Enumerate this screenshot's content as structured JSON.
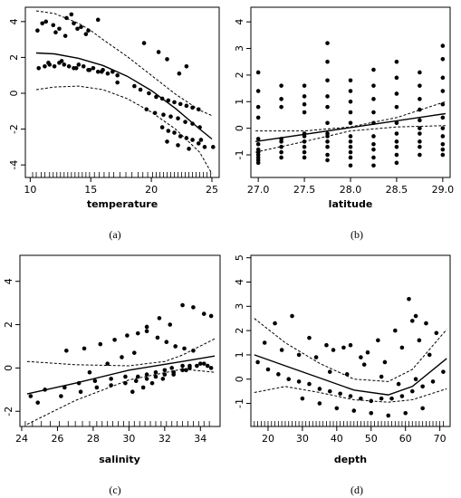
{
  "chart_data": [
    {
      "type": "scatter",
      "panel_label": "(a)",
      "xlabel": "temperature",
      "ylabel": "",
      "xlim": [
        9.6,
        25.6
      ],
      "ylim": [
        -4.7,
        4.8
      ],
      "xticks": [
        "10",
        "15",
        "20",
        "25"
      ],
      "yticks": [
        "-4",
        "-2",
        "0",
        "2",
        "4"
      ],
      "grid": false,
      "series": [
        {
          "role": "points",
          "x": [
            10.6,
            11.3,
            11.9,
            12.4,
            13.0,
            13.6,
            14.2,
            14.8,
            12.9,
            13.4,
            11.0,
            12.1,
            13.9,
            14.6,
            15.6,
            10.7,
            11.2,
            11.6,
            12.0,
            12.4,
            12.8,
            13.2,
            13.6,
            14.0,
            14.4,
            14.8,
            15.2,
            15.6,
            16.0,
            16.4,
            16.8,
            17.2,
            11.5,
            12.6,
            13.8,
            14.9,
            15.9,
            19.4,
            20.6,
            21.3,
            22.3,
            22.9,
            17.2,
            18.6,
            19.1,
            19.8,
            20.4,
            20.9,
            21.4,
            21.9,
            22.4,
            22.9,
            23.4,
            23.9,
            19.6,
            20.3,
            21.0,
            21.6,
            22.2,
            22.8,
            23.4,
            24.0,
            20.9,
            21.4,
            21.9,
            22.4,
            22.9,
            23.4,
            23.9,
            24.4,
            21.3,
            22.2,
            23.1,
            24.1,
            25.1
          ],
          "y": [
            3.5,
            4.0,
            3.8,
            3.6,
            4.2,
            3.9,
            3.7,
            3.5,
            3.2,
            4.4,
            3.9,
            3.4,
            3.6,
            3.3,
            4.1,
            1.4,
            1.5,
            1.6,
            1.5,
            1.7,
            1.6,
            1.5,
            1.4,
            1.6,
            1.5,
            1.3,
            1.4,
            1.2,
            1.3,
            1.1,
            1.2,
            1.0,
            1.7,
            1.8,
            1.4,
            1.3,
            1.2,
            2.8,
            2.3,
            1.9,
            1.1,
            1.5,
            0.6,
            0.4,
            0.2,
            0.0,
            -0.2,
            -0.3,
            -0.4,
            -0.5,
            -0.6,
            -0.7,
            -0.8,
            -0.9,
            -0.9,
            -1.1,
            -1.2,
            -1.3,
            -1.4,
            -1.6,
            -1.7,
            -1.9,
            -1.9,
            -2.1,
            -2.2,
            -2.4,
            -2.5,
            -2.6,
            -2.8,
            -3.0,
            -2.7,
            -2.9,
            -3.1,
            -2.6,
            -3.0
          ]
        },
        {
          "role": "fit",
          "x": [
            10.5,
            12,
            14,
            16,
            18,
            20,
            22,
            24,
            25
          ],
          "y": [
            2.25,
            2.2,
            1.95,
            1.55,
            0.95,
            0.15,
            -0.85,
            -2.0,
            -2.55
          ]
        },
        {
          "role": "upper-ci",
          "x": [
            10.5,
            12,
            14,
            15,
            16,
            18,
            20,
            22,
            24,
            25
          ],
          "y": [
            4.6,
            4.45,
            3.9,
            3.5,
            3.0,
            2.05,
            1.0,
            -0.05,
            -0.95,
            -1.25
          ]
        },
        {
          "role": "lower-ci",
          "x": [
            10.5,
            12,
            14,
            16,
            18,
            20,
            22,
            24,
            25
          ],
          "y": [
            0.2,
            0.35,
            0.4,
            0.2,
            -0.3,
            -1.05,
            -2.0,
            -3.3,
            -4.5
          ]
        }
      ],
      "rug_x": [
        10.2,
        10.5,
        10.9,
        11.2,
        11.6,
        11.9,
        12.2,
        12.5,
        12.8,
        13.1,
        13.4,
        13.7,
        14.0,
        14.3,
        14.6,
        14.9,
        15.3,
        15.7,
        16.1,
        16.5,
        16.9,
        17.4,
        17.9,
        18.4,
        18.9,
        19.3,
        19.7,
        20.1,
        20.4,
        20.7,
        21.0,
        21.3,
        21.6,
        21.9,
        22.2,
        22.5,
        22.8,
        23.1,
        23.4,
        23.7,
        24.0,
        24.3,
        24.6,
        24.9
      ]
    },
    {
      "type": "scatter",
      "panel_label": "(b)",
      "xlabel": "latitude",
      "ylabel": "",
      "xlim": [
        26.92,
        29.08
      ],
      "ylim": [
        -1.85,
        4.55
      ],
      "xticks": [
        "27.0",
        "27.5",
        "28.0",
        "28.5",
        "29.0"
      ],
      "yticks": [
        "-1",
        "0",
        "1",
        "2",
        "3",
        "4"
      ],
      "grid": false,
      "series": [
        {
          "role": "points",
          "x": [
            27.0,
            27.0,
            27.0,
            27.0,
            27.0,
            27.0,
            27.0,
            27.0,
            27.0,
            27.0,
            27.0,
            27.0,
            27.25,
            27.25,
            27.25,
            27.25,
            27.25,
            27.25,
            27.25,
            27.25,
            27.5,
            27.5,
            27.5,
            27.5,
            27.5,
            27.5,
            27.5,
            27.5,
            27.5,
            27.5,
            27.75,
            27.75,
            27.75,
            27.75,
            27.75,
            27.75,
            27.75,
            27.75,
            27.75,
            27.75,
            27.75,
            27.75,
            28.0,
            28.0,
            28.0,
            28.0,
            28.0,
            28.0,
            28.0,
            28.0,
            28.0,
            28.0,
            28.0,
            28.25,
            28.25,
            28.25,
            28.25,
            28.25,
            28.25,
            28.25,
            28.25,
            28.25,
            28.25,
            28.5,
            28.5,
            28.5,
            28.5,
            28.5,
            28.5,
            28.5,
            28.5,
            28.5,
            28.5,
            28.75,
            28.75,
            28.75,
            28.75,
            28.75,
            28.75,
            28.75,
            28.75,
            28.75,
            28.75,
            29.0,
            29.0,
            29.0,
            29.0,
            29.0,
            29.0,
            29.0,
            29.0,
            29.0,
            29.0,
            29.0
          ],
          "y": [
            2.1,
            1.4,
            0.8,
            0.4,
            -0.4,
            -0.6,
            -0.8,
            -0.9,
            -1.0,
            -1.1,
            -1.2,
            -1.3,
            1.6,
            1.1,
            0.8,
            -0.4,
            -0.5,
            -0.7,
            -0.9,
            -1.1,
            1.6,
            1.2,
            0.9,
            0.6,
            -0.2,
            -0.3,
            -0.5,
            -0.7,
            -0.9,
            -1.1,
            3.2,
            2.5,
            1.8,
            1.2,
            0.8,
            0.2,
            -0.2,
            -0.3,
            -0.5,
            -0.7,
            -1.0,
            -1.2,
            1.8,
            1.4,
            1.0,
            0.6,
            0.2,
            -0.3,
            -0.5,
            -0.7,
            -0.9,
            -1.1,
            -1.4,
            2.2,
            1.6,
            1.1,
            0.6,
            0.2,
            -0.3,
            -0.6,
            -0.8,
            -1.1,
            -1.4,
            2.5,
            1.9,
            1.3,
            0.8,
            0.2,
            -0.2,
            -0.5,
            -0.7,
            -1.0,
            -1.3,
            2.1,
            1.6,
            1.1,
            0.7,
            0.3,
            0.0,
            -0.2,
            -0.5,
            -0.7,
            -1.0,
            3.1,
            2.6,
            1.9,
            1.4,
            0.9,
            0.4,
            0.0,
            -0.3,
            -0.6,
            -0.8,
            -1.0
          ]
        },
        {
          "role": "fit",
          "x": [
            26.97,
            29.03
          ],
          "y": [
            -0.5,
            0.55
          ]
        },
        {
          "role": "upper-ci",
          "x": [
            26.97,
            27.5,
            28.0,
            28.5,
            29.03
          ],
          "y": [
            -0.1,
            -0.1,
            0.05,
            0.4,
            1.0
          ]
        },
        {
          "role": "lower-ci",
          "x": [
            26.97,
            27.5,
            28.0,
            28.5,
            29.03
          ],
          "y": [
            -0.9,
            -0.5,
            -0.1,
            0.05,
            0.1
          ]
        }
      ],
      "rug_x": []
    },
    {
      "type": "scatter",
      "panel_label": "(c)",
      "xlabel": "salinity",
      "ylabel": "",
      "xlim": [
        23.9,
        35.1
      ],
      "ylim": [
        -2.7,
        5.2
      ],
      "xticks": [
        "24",
        "26",
        "28",
        "30",
        "32",
        "34"
      ],
      "yticks": [
        "-2",
        "0",
        "2",
        "4"
      ],
      "grid": false,
      "series": [
        {
          "role": "points",
          "x": [
            24.5,
            25.3,
            26.4,
            27.2,
            28.1,
            29.0,
            29.8,
            30.5,
            31.0,
            31.5,
            32.0,
            32.4,
            33.0,
            33.4,
            34.0,
            34.4,
            26.5,
            27.5,
            28.4,
            29.2,
            29.9,
            30.5,
            31.0,
            31.6,
            32.1,
            32.6,
            33.1,
            33.6,
            24.9,
            26.2,
            27.3,
            28.2,
            29.0,
            29.8,
            30.4,
            31.0,
            31.5,
            32.0,
            32.5,
            33.0,
            33.4,
            33.8,
            34.2,
            34.6,
            27.8,
            28.8,
            29.6,
            30.3,
            31.0,
            31.7,
            32.3,
            33.0,
            33.6,
            34.2,
            34.6,
            30.2,
            30.8,
            31.3,
            31.9,
            32.5,
            33.2
          ],
          "y": [
            -1.3,
            -1.0,
            -0.9,
            -0.7,
            -0.6,
            -0.5,
            -0.4,
            -0.4,
            -0.3,
            -0.2,
            -0.1,
            0.0,
            0.1,
            0.1,
            0.2,
            0.1,
            0.8,
            0.9,
            1.1,
            1.3,
            1.5,
            1.6,
            1.7,
            1.4,
            1.2,
            1.0,
            0.9,
            0.8,
            -1.6,
            -1.3,
            -1.1,
            -0.9,
            -0.8,
            -0.7,
            -0.6,
            -0.5,
            -0.4,
            -0.3,
            -0.2,
            -0.1,
            0.0,
            0.1,
            0.2,
            0.0,
            -0.2,
            0.2,
            0.5,
            0.7,
            1.9,
            2.3,
            2.0,
            2.9,
            2.8,
            2.5,
            2.4,
            -1.1,
            -0.9,
            -0.7,
            -0.5,
            -0.3,
            -0.1
          ]
        },
        {
          "role": "fit",
          "x": [
            24.3,
            27,
            30,
            33,
            34.8
          ],
          "y": [
            -1.2,
            -0.7,
            -0.1,
            0.3,
            0.55
          ]
        },
        {
          "role": "upper-ci",
          "x": [
            24.3,
            27,
            30,
            32,
            33,
            34.8
          ],
          "y": [
            0.3,
            0.15,
            0.1,
            0.3,
            0.6,
            1.35
          ]
        },
        {
          "role": "lower-ci",
          "x": [
            24.3,
            27,
            30,
            33,
            34.8
          ],
          "y": [
            -2.6,
            -1.5,
            -0.55,
            -0.05,
            -0.2
          ]
        }
      ],
      "rug_x": [
        24.2,
        24.6,
        25.1,
        25.6,
        26.1,
        26.6,
        27.0,
        27.4,
        27.8,
        28.2,
        28.5,
        28.8,
        29.1,
        29.4,
        29.7,
        30.0,
        30.3,
        30.6,
        30.9,
        31.2,
        31.5,
        31.8,
        32.1,
        32.4,
        32.7,
        33.0,
        33.3,
        33.6,
        33.9,
        34.2,
        34.5
      ]
    },
    {
      "type": "scatter",
      "panel_label": "(d)",
      "xlabel": "depth",
      "ylabel": "",
      "xlim": [
        15,
        73
      ],
      "ylim": [
        -1.95,
        5.1
      ],
      "xticks": [
        "20",
        "30",
        "40",
        "50",
        "60",
        "70"
      ],
      "yticks": [
        "-1",
        "0",
        "1",
        "2",
        "3",
        "4",
        "5"
      ],
      "grid": false,
      "series": [
        {
          "role": "points",
          "x": [
            17,
            20,
            23,
            26,
            29,
            32,
            35,
            38,
            41,
            44,
            47,
            50,
            53,
            56,
            59,
            62,
            65,
            68,
            71,
            19,
            24,
            29,
            34,
            39,
            44,
            49,
            54,
            59,
            64,
            69,
            22,
            27,
            32,
            37,
            42,
            47,
            52,
            57,
            62,
            67,
            30,
            35,
            40,
            45,
            50,
            55,
            60,
            65,
            38,
            43,
            48,
            53,
            58,
            63,
            61,
            63,
            66
          ],
          "y": [
            0.7,
            0.4,
            0.2,
            0.0,
            -0.1,
            -0.2,
            -0.4,
            -0.5,
            -0.6,
            -0.7,
            -0.8,
            -0.9,
            -0.8,
            -0.8,
            -0.7,
            -0.5,
            -0.3,
            -0.1,
            0.3,
            1.5,
            1.2,
            1.0,
            0.9,
            1.2,
            1.4,
            1.1,
            0.7,
            1.3,
            1.6,
            1.9,
            2.3,
            2.6,
            1.7,
            1.4,
            1.3,
            0.9,
            1.6,
            2.0,
            2.4,
            1.0,
            -0.8,
            -1.0,
            -1.2,
            -1.3,
            -1.4,
            -1.5,
            -1.4,
            -1.2,
            0.3,
            0.2,
            0.6,
            0.1,
            -0.2,
            0.0,
            3.3,
            2.6,
            2.3
          ]
        },
        {
          "role": "fit",
          "x": [
            16,
            25,
            35,
            45,
            55,
            62,
            72
          ],
          "y": [
            1.0,
            0.55,
            0.05,
            -0.45,
            -0.65,
            -0.3,
            0.85
          ]
        },
        {
          "role": "upper-ci",
          "x": [
            16,
            25,
            35,
            45,
            55,
            62,
            72
          ],
          "y": [
            2.5,
            1.5,
            0.65,
            0.0,
            -0.1,
            0.4,
            2.05
          ]
        },
        {
          "role": "lower-ci",
          "x": [
            16,
            25,
            35,
            45,
            55,
            62,
            72
          ],
          "y": [
            -0.55,
            -0.3,
            -0.55,
            -0.85,
            -0.95,
            -0.85,
            -0.4
          ]
        }
      ],
      "rug_x": [
        16,
        17,
        18,
        19,
        20,
        21,
        22,
        23,
        24,
        25,
        26,
        27,
        28,
        29,
        30,
        31,
        32,
        33,
        34,
        35,
        36,
        37,
        38,
        39,
        40,
        41,
        42,
        43,
        44,
        45,
        46,
        47,
        48,
        49,
        50,
        51,
        52,
        53,
        54,
        55,
        56,
        57,
        58,
        59,
        60,
        61,
        62,
        63,
        64,
        65,
        66,
        67,
        68,
        69,
        70,
        71
      ]
    }
  ]
}
